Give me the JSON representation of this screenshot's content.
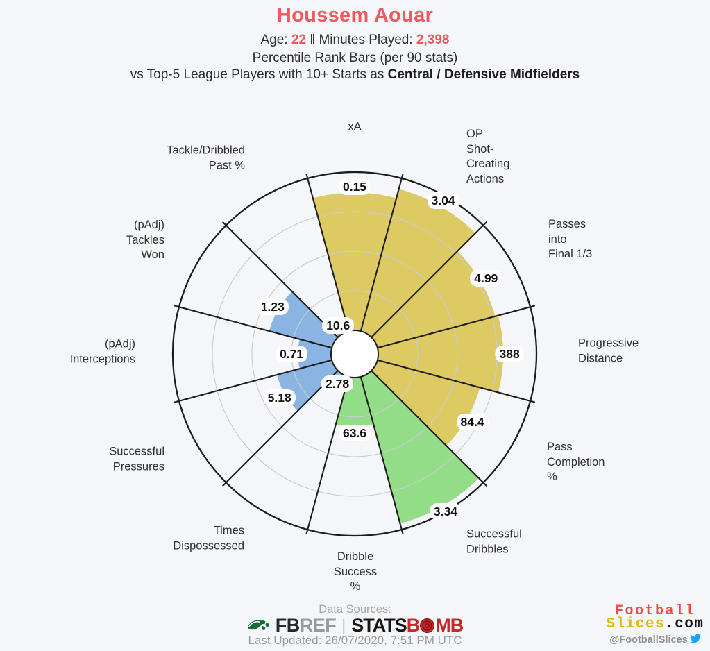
{
  "header": {
    "title": "Houssem Aouar",
    "age_label": "Age:",
    "age_value": "22",
    "separator": "‖",
    "minutes_label": "Minutes Played:",
    "minutes_value": "2,398",
    "line3": "Percentile Rank Bars (per 90 stats)",
    "line4_prefix": "vs Top-5 League Players with 10+ Starts as",
    "line4_bold": "Central / Defensive Midfielders",
    "accent_color": "#ee5a5f"
  },
  "chart_data": {
    "type": "pizza-percentile-bar",
    "player": "Houssem Aouar",
    "slices": [
      {
        "label": "xA",
        "value": "0.15",
        "percentile": 87,
        "group": "attacking"
      },
      {
        "label": "OP\nShot-\nCreating\nActions",
        "value": "3.04",
        "percentile": 93,
        "group": "attacking"
      },
      {
        "label": "Passes\ninto\nFinal 1/3",
        "value": "4.99",
        "percentile": 77,
        "group": "attacking"
      },
      {
        "label": "Progressive\nDistance",
        "value": "388",
        "percentile": 79,
        "group": "attacking"
      },
      {
        "label": "Pass\nCompletion\n%",
        "value": "84.4",
        "percentile": 67,
        "group": "attacking"
      },
      {
        "label": "Successful\nDribbles",
        "value": "3.34",
        "percentile": 96,
        "group": "possession"
      },
      {
        "label": "Dribble\nSuccess\n%",
        "value": "63.6",
        "percentile": 31,
        "group": "possession"
      },
      {
        "label": "Times\nDispossessed",
        "value": "2.78",
        "percentile": 3,
        "group": "defending"
      },
      {
        "label": "Successful\nPressures",
        "value": "5.18",
        "percentile": 36,
        "group": "defending"
      },
      {
        "label": "(pAdj)\nInterceptions",
        "value": "0.71",
        "percentile": 21,
        "group": "defending"
      },
      {
        "label": "(pAdj)\nTackles\nWon",
        "value": "1.23",
        "percentile": 41,
        "group": "defending"
      },
      {
        "label": "Tackle/Dribbled\nPast %",
        "value": "10.6",
        "percentile": 2,
        "group": "defending"
      }
    ],
    "group_colors": {
      "attacking": "#ddca62",
      "possession": "#93dc88",
      "defending": "#8ab4e2"
    },
    "rings_pct": [
      25,
      50,
      75
    ],
    "style": {
      "outline": "#1c1c1c",
      "ring": "#c9cdd2",
      "hole_bg": "#ffffff",
      "pill_bg": "#ffffff"
    },
    "legend_position": "none",
    "value_range": [
      0,
      100
    ]
  },
  "footer": {
    "data_sources_label": "Data Sources:",
    "fbref_fb": "FB",
    "fbref_ref": "REF",
    "separator": "|",
    "statsbomb_stats": "STATS",
    "statsbomb_b": "B",
    "statsbomb_mb": "MB",
    "last_updated": "Last Updated: 26/07/2020, 7:51 PM UTC"
  },
  "brand": {
    "line1": "Football",
    "line2_slices": "Slices",
    "line2_com": ".com",
    "handle": "@FootballSlices",
    "colors": {
      "football": "#ef4b4b",
      "slices": "#e5b90c",
      "com": "#151515",
      "bird": "#1da1f2"
    }
  }
}
